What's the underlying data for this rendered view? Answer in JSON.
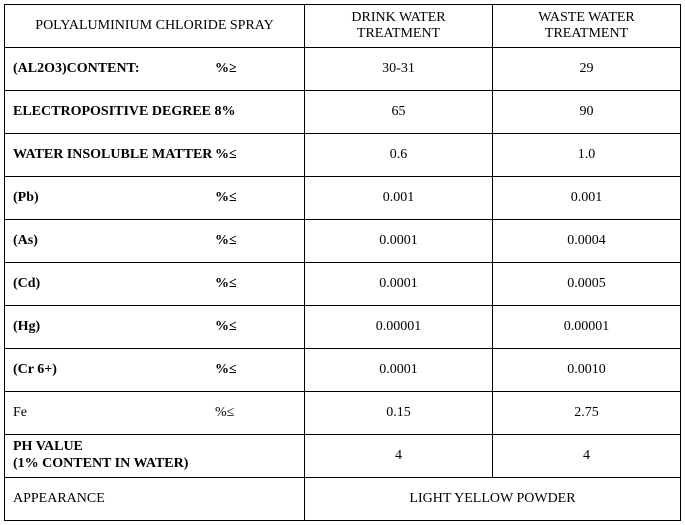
{
  "headers": {
    "col1": "POLYALUMINIUM CHLORIDE SPRAY",
    "col2": "DRINK WATER TREATMENT",
    "col3": "WASTE WATER TREATMENT"
  },
  "rows": [
    {
      "label": "(AL2O3)CONTENT:",
      "unit": "%≥",
      "bold": true,
      "drink": "30-31",
      "waste": "29"
    },
    {
      "label": "ELECTROPOSITIVE DEGREE 8%",
      "unit": "",
      "bold": true,
      "drink": "65",
      "waste": "90"
    },
    {
      "label": "WATER INSOLUBLE MATTER",
      "unit": "%≤",
      "bold": true,
      "drink": "0.6",
      "waste": "1.0"
    },
    {
      "label": "(Pb)",
      "unit": "%≤",
      "bold": true,
      "drink": "0.001",
      "waste": "0.001"
    },
    {
      "label": "(As)",
      "unit": "%≤",
      "bold": true,
      "drink": "0.0001",
      "waste": "0.0004"
    },
    {
      "label": "(Cd)",
      "unit": "%≤",
      "bold": true,
      "drink": "0.0001",
      "waste": "0.0005"
    },
    {
      "label": "(Hg)",
      "unit": "%≤",
      "bold": true,
      "drink": "0.00001",
      "waste": "0.00001"
    },
    {
      "label": "(Cr 6+)",
      "unit": "%≤",
      "bold": true,
      "drink": "0.0001",
      "waste": "0.0010"
    },
    {
      "label": "Fe",
      "unit": "%≤",
      "bold": false,
      "drink": "0.15",
      "waste": "2.75"
    }
  ],
  "ph": {
    "label_line1": "PH VALUE",
    "label_line2": "(1% CONTENT IN WATER)",
    "drink": "4",
    "waste": "4"
  },
  "appearance": {
    "label": "APPEARANCE",
    "value": "LIGHT YELLOW POWDER"
  }
}
